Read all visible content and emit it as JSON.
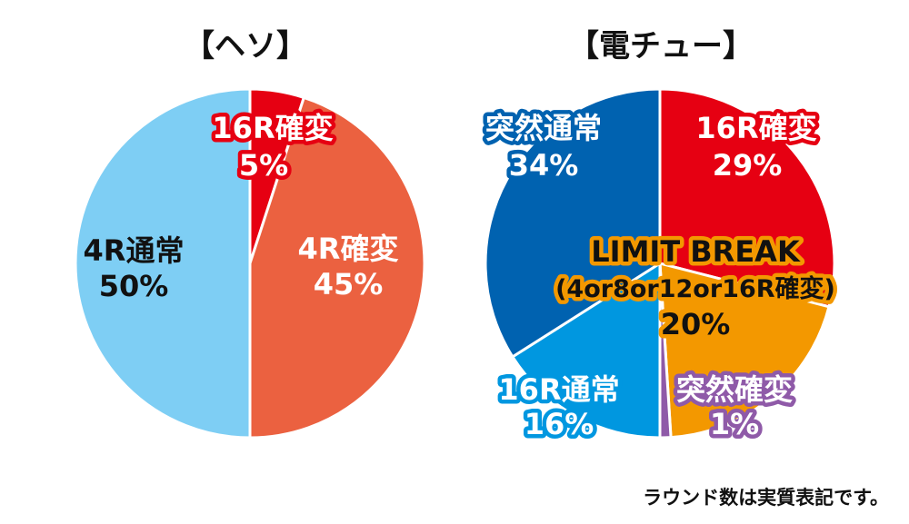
{
  "chart_data": [
    {
      "type": "pie",
      "title": "【ヘソ】",
      "slices": [
        {
          "label": "16R確変",
          "value": 5,
          "value_label": "5%",
          "color": "#e60012"
        },
        {
          "label": "4R確変",
          "value": 45,
          "value_label": "45%",
          "color": "#eb6140"
        },
        {
          "label": "4R通常",
          "value": 50,
          "value_label": "50%",
          "color": "#7ecef4"
        }
      ]
    },
    {
      "type": "pie",
      "title": "【電チュー】",
      "slices": [
        {
          "label": "16R確変",
          "value": 29,
          "value_label": "29%",
          "color": "#e60012"
        },
        {
          "label": "LIMIT BREAK",
          "sublabel": "(4or8or12or16R確変)",
          "value": 20,
          "value_label": "20%",
          "color": "#f39800"
        },
        {
          "label": "突然確変",
          "value": 1,
          "value_label": "1%",
          "color": "#8f5aa8"
        },
        {
          "label": "16R通常",
          "value": 16,
          "value_label": "16%",
          "color": "#0097e0"
        },
        {
          "label": "突然通常",
          "value": 34,
          "value_label": "34%",
          "color": "#0062b0"
        }
      ]
    }
  ],
  "footnote": "ラウンド数は実質表記です。"
}
